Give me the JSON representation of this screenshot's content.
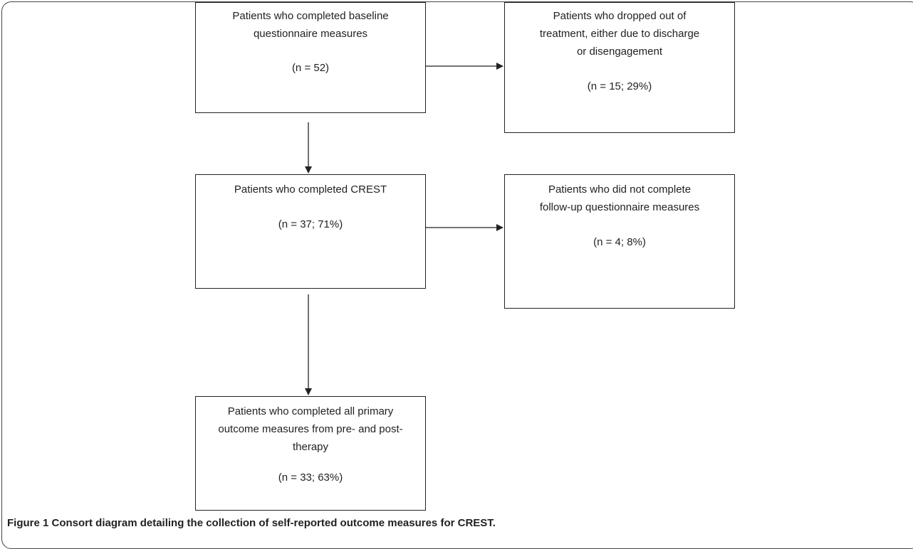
{
  "boxes": {
    "baseline": {
      "label": "Patients who completed baseline questionnaire measures",
      "count": "(n = 52)"
    },
    "dropout": {
      "label": "Patients who dropped out of treatment, either due to discharge or disengagement",
      "count": "(n = 15; 29%)"
    },
    "crest": {
      "label": "Patients who completed CREST",
      "count": "(n = 37; 71%)"
    },
    "followup": {
      "label": "Patients who did not complete follow-up questionnaire measures",
      "count": "(n = 4; 8%)"
    },
    "final": {
      "label": "Patients who completed all primary outcome measures from pre- and post-therapy",
      "count": "(n = 33; 63%)"
    }
  },
  "caption": "Figure 1 Consort diagram detailing the collection of self-reported outcome measures for CREST."
}
